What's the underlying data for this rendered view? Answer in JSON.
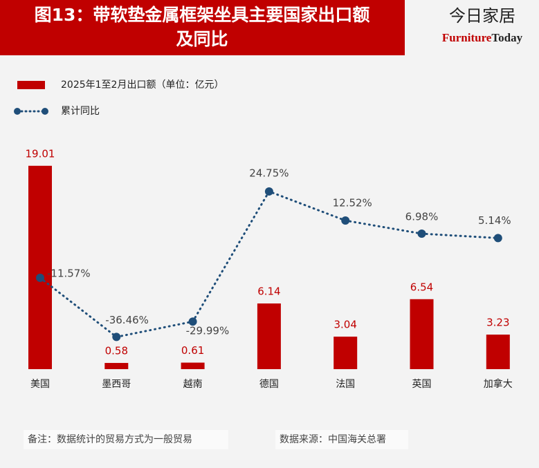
{
  "header": {
    "title_lines": [
      "图13：带软垫金属框架坐具主要国家出口额",
      "及同比"
    ],
    "logo_cn": "今日家居",
    "logo_en": [
      "Furniture",
      "Today"
    ]
  },
  "chart_data": {
    "type": "bar-line",
    "categories": [
      "美国",
      "墨西哥",
      "越南",
      "德国",
      "法国",
      "英国",
      "加拿大"
    ],
    "series": [
      {
        "name": "2025年1至2月出口额（单位：亿元）",
        "type": "bar",
        "color": "#c00000",
        "values": [
          19.01,
          0.58,
          0.61,
          6.14,
          3.04,
          6.54,
          3.23
        ]
      },
      {
        "name": "累计同比",
        "type": "line",
        "axis": "y2",
        "color": "#1f4e79",
        "values": [
          -11.57,
          -36.46,
          -29.99,
          24.75,
          12.52,
          6.98,
          5.14
        ],
        "value_labels": [
          "-11.57%",
          "-36.46%",
          "-29.99%",
          "24.75%",
          "12.52%",
          "6.98%",
          "5.14%"
        ]
      }
    ],
    "ylim": [
      0,
      20
    ],
    "y2lim": [
      -50,
      40
    ],
    "legend": "top-left",
    "grid": false
  },
  "footer": {
    "note": "备注：数据统计的贸易方式为一般贸易",
    "source": "数据来源：中国海关总署"
  }
}
